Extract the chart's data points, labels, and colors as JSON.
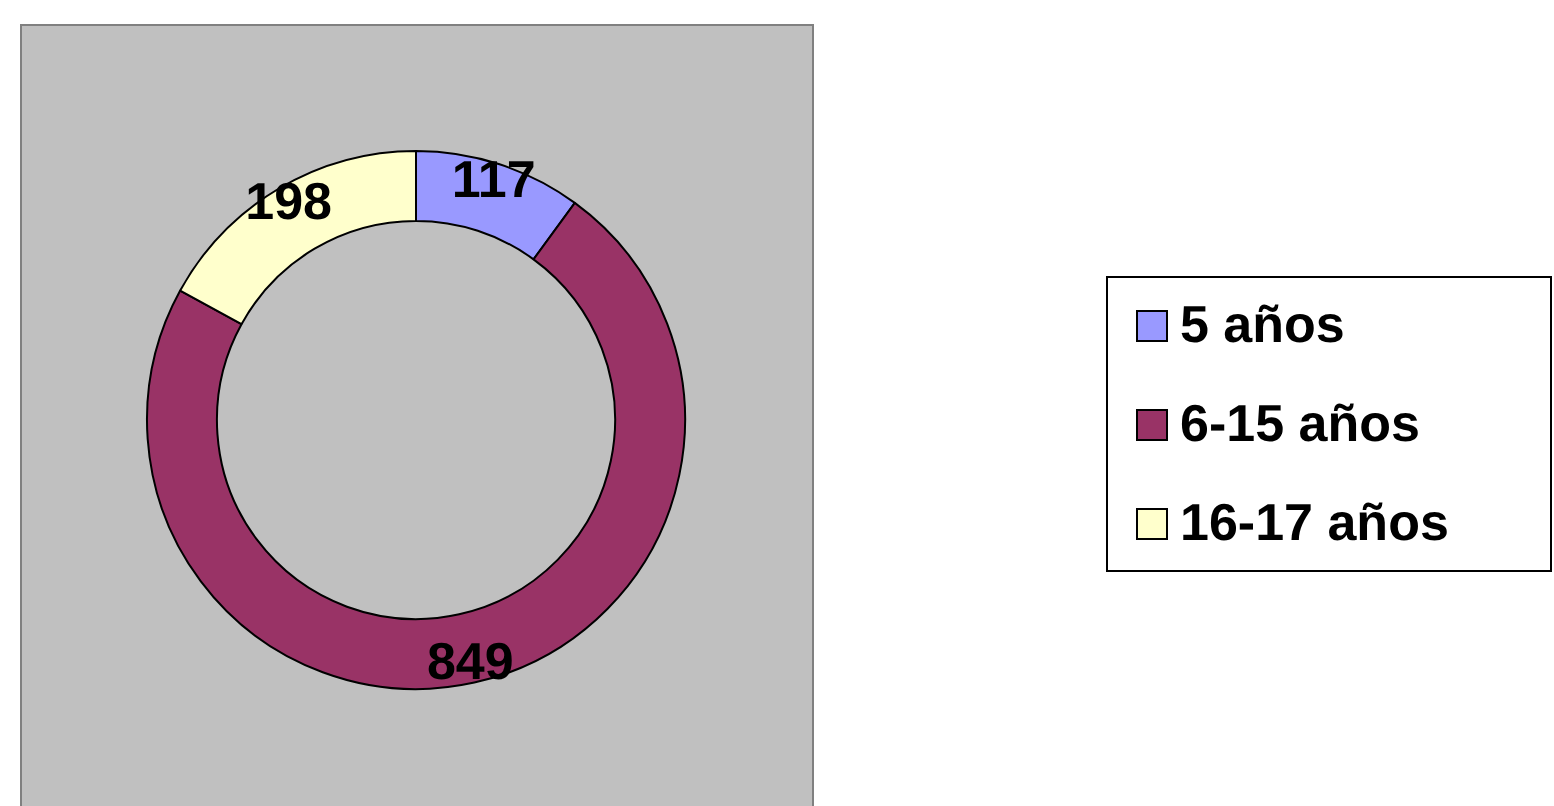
{
  "chart_data": {
    "type": "donut",
    "categories": [
      "5 años",
      "6-15 años",
      "16-17 años"
    ],
    "values": [
      117,
      849,
      198
    ],
    "colors": [
      "#9999ff",
      "#993366",
      "#ffffcc"
    ],
    "data_labels": true,
    "legend": "right"
  }
}
